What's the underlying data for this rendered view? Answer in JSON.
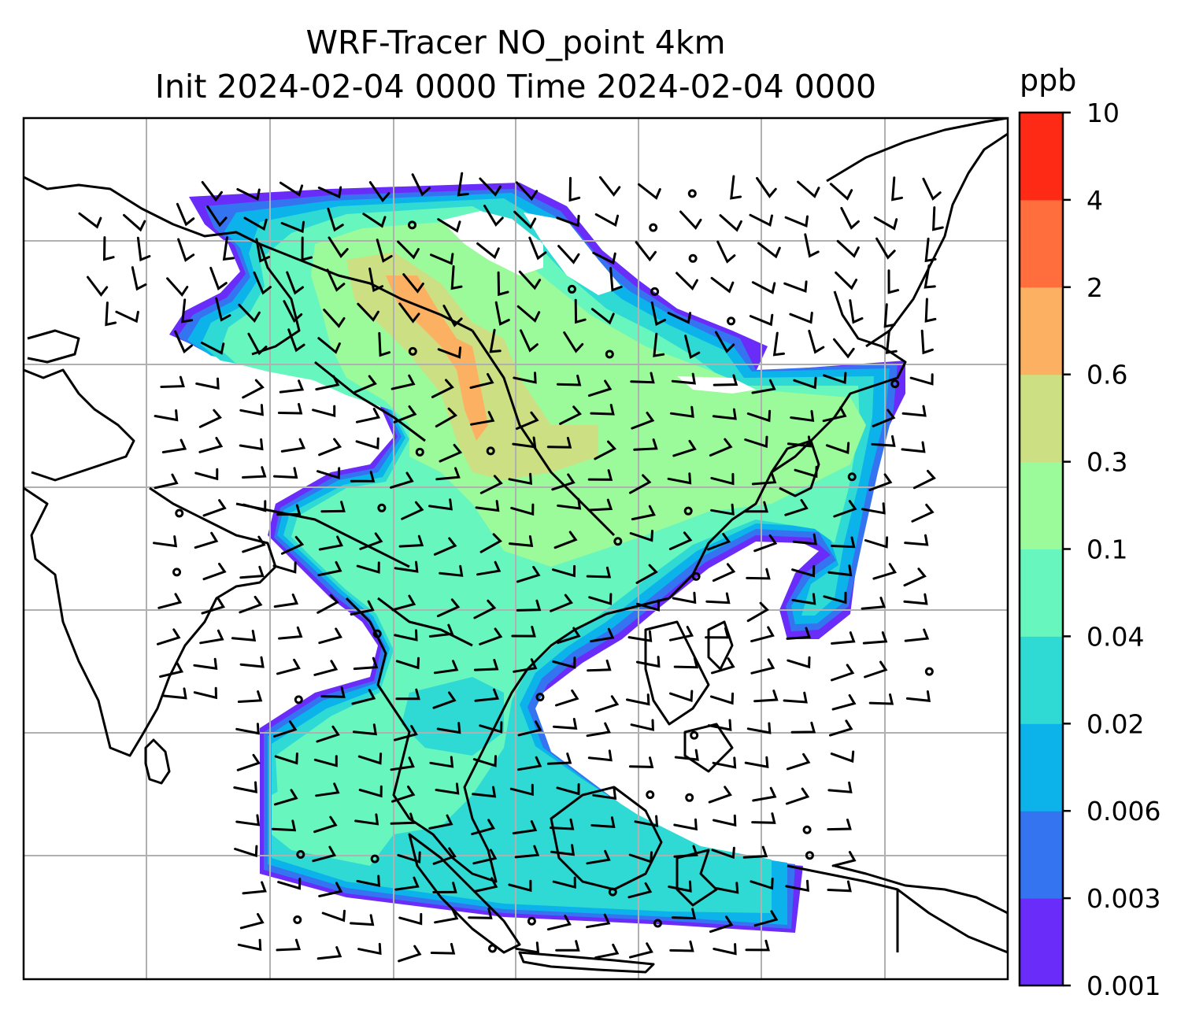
{
  "title_line1": "WRF-Tracer NO_point 4km",
  "title_line2": "Init 2024-02-04 0000 Time 2024-02-04 0000",
  "colorbar": {
    "unit": "ppb",
    "ticks": [
      "0.001",
      "0.003",
      "0.006",
      "0.02",
      "0.04",
      "0.1",
      "0.3",
      "0.6",
      "2",
      "4",
      "10"
    ],
    "colors": [
      "#6a2cf8",
      "#3474f0",
      "#0bb3ea",
      "#2fdad4",
      "#66f6be",
      "#9bfa9a",
      "#cce083",
      "#fcb062",
      "#ff6e3c",
      "#ff2a16"
    ]
  },
  "map": {
    "gridlines": true,
    "features": [
      "coastlines",
      "country-borders",
      "wind-barbs",
      "tracer-concentration"
    ]
  }
}
